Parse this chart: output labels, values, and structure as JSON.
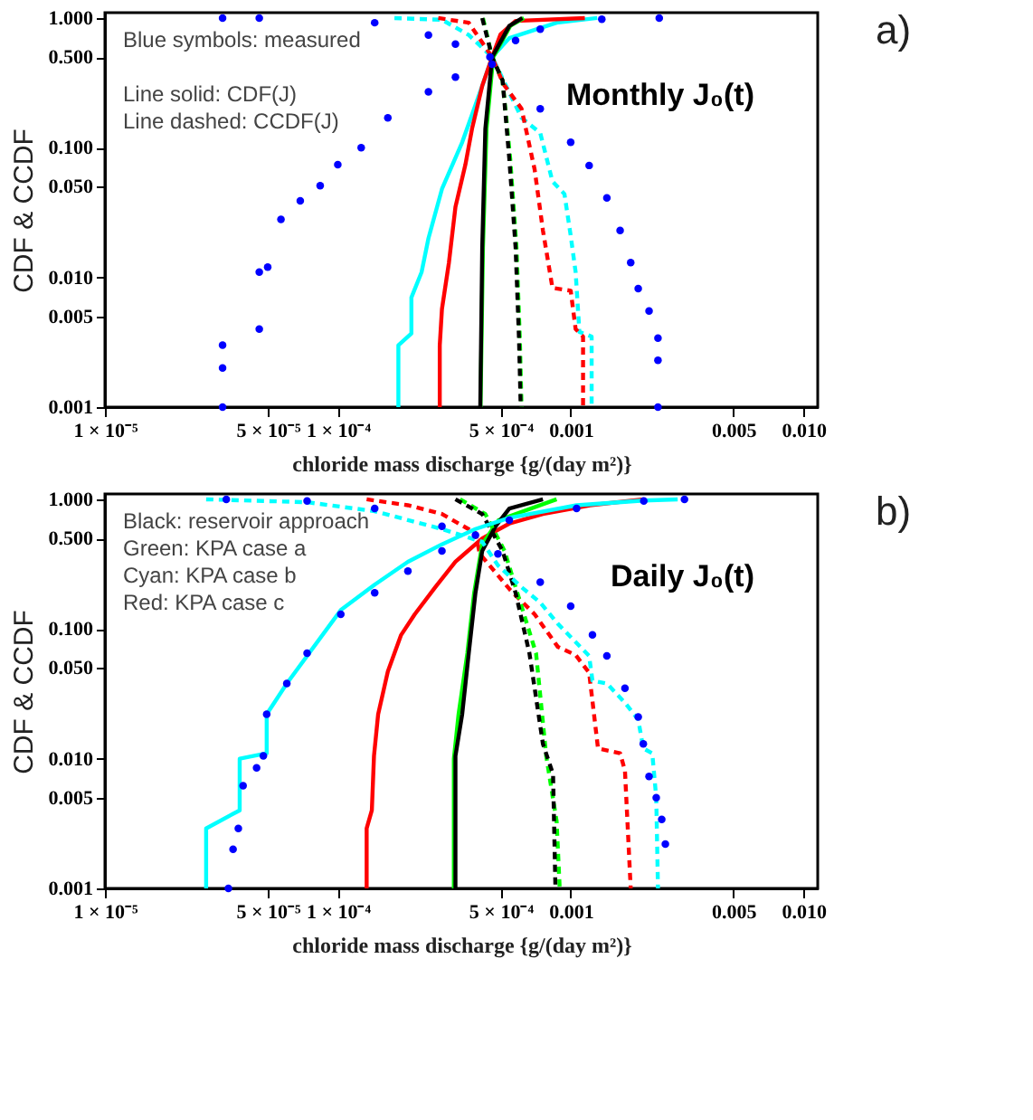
{
  "chart_data": [
    {
      "type": "line",
      "title": "Monthly J₀(t)",
      "xlabel": "chloride mass discharge {g/(day m²)}",
      "ylabel": "CDF & CCDF",
      "annotations": [
        "Blue symbols: measured",
        "Line solid: CDF(J)",
        "Line dashed: CCDF(J)",
        "a)"
      ],
      "log": "xy",
      "grid": false,
      "xlim": [
        1e-05,
        0.0115
      ],
      "xticks": [
        {
          "value": 1e-05,
          "label": "1 × 10⁻⁵"
        },
        {
          "value": 5e-05,
          "label": "5 × 10⁻⁵"
        },
        {
          "value": 0.0001,
          "label": "1 × 10⁻⁴"
        },
        {
          "value": 0.0005,
          "label": "5 × 10⁻⁴"
        },
        {
          "value": 0.001,
          "label": "0.001"
        },
        {
          "value": 0.005,
          "label": "0.005"
        },
        {
          "value": 0.01,
          "label": "0.010"
        }
      ],
      "ylim": [
        0.001,
        1.1
      ],
      "yticks": [
        {
          "value": 0.001,
          "label": "0.001"
        },
        {
          "value": 0.005,
          "label": "0.005"
        },
        {
          "value": 0.01,
          "label": "0.010"
        },
        {
          "value": 0.05,
          "label": "0.050"
        },
        {
          "value": 0.1,
          "label": "0.100"
        },
        {
          "value": 0.5,
          "label": "0.500"
        },
        {
          "value": 1,
          "label": "1.000"
        }
      ],
      "series": [
        {
          "type": "line",
          "line_style": "solid",
          "color": "#00ffff",
          "x": [
            0.000182,
            0.000182,
            0.000207,
            0.000207,
            0.000229,
            0.000245,
            0.00028,
            0.000342,
            0.000417,
            0.00046,
            0.000545,
            0.00087,
            0.0013
          ],
          "values": [
            0.001,
            0.003,
            0.0037,
            0.007,
            0.011,
            0.02,
            0.048,
            0.11,
            0.3,
            0.5,
            0.7,
            0.92,
            1.0
          ]
        },
        {
          "type": "line",
          "line_style": "dashed",
          "color": "#00ffff",
          "x": [
            0.000175,
            0.00028,
            0.000365,
            0.00046,
            0.000615,
            0.00074,
            0.000835,
            0.00094,
            0.001,
            0.00105,
            0.00109,
            0.00123,
            0.00123
          ],
          "values": [
            1.0,
            0.97,
            0.74,
            0.5,
            0.17,
            0.13,
            0.055,
            0.044,
            0.021,
            0.011,
            0.0038,
            0.0035,
            0.001
          ]
        },
        {
          "type": "line",
          "line_style": "solid",
          "color": "#ff0000",
          "x": [
            0.000274,
            0.000274,
            0.00028,
            0.0003,
            0.00032,
            0.000353,
            0.000377,
            0.000417,
            0.00046,
            0.0005,
            0.00058,
            0.00115
          ],
          "values": [
            0.001,
            0.003,
            0.0057,
            0.013,
            0.035,
            0.074,
            0.14,
            0.3,
            0.5,
            0.75,
            0.95,
            1.0
          ]
        },
        {
          "type": "line",
          "line_style": "dashed",
          "color": "#ff0000",
          "x": [
            0.00027,
            0.000365,
            0.00046,
            0.000514,
            0.000615,
            0.0007,
            0.00076,
            0.000835,
            0.001,
            0.00105,
            0.00113,
            0.00113
          ],
          "values": [
            1.0,
            0.92,
            0.5,
            0.31,
            0.2,
            0.068,
            0.023,
            0.0083,
            0.0079,
            0.004,
            0.0035,
            0.001
          ]
        },
        {
          "type": "line",
          "line_style": "solid",
          "color": "#00ff00",
          "x": [
            0.00041,
            0.00042,
            0.000435,
            0.000465,
            0.00055,
            0.00063
          ],
          "values": [
            0.001,
            0.017,
            0.14,
            0.5,
            0.87,
            1.0
          ]
        },
        {
          "type": "line",
          "line_style": "solid",
          "color": "#000000",
          "x": [
            0.000409,
            0.000417,
            0.00043,
            0.00046,
            0.000545,
            0.00062
          ],
          "values": [
            0.001,
            0.017,
            0.14,
            0.5,
            0.87,
            1.0
          ]
        },
        {
          "type": "line",
          "line_style": "dashed",
          "color": "#00ff00",
          "x": [
            0.00042,
            0.00046,
            0.00051,
            0.00055,
            0.000585,
            0.000605,
            0.000615
          ],
          "values": [
            1.0,
            0.5,
            0.33,
            0.082,
            0.017,
            0.0033,
            0.001
          ]
        },
        {
          "type": "line",
          "line_style": "dashed",
          "color": "#000000",
          "x": [
            0.000417,
            0.00046,
            0.00051,
            0.000545,
            0.00058,
            0.0006,
            0.00061
          ],
          "values": [
            1.0,
            0.5,
            0.33,
            0.082,
            0.017,
            0.0033,
            0.001
          ]
        },
        {
          "type": "scatter",
          "marker": "circle",
          "color": "#0000ff",
          "x": [
            3.2e-05,
            3.2e-05,
            3.2e-05,
            4.6e-05,
            4.6e-05,
            5e-05,
            5.7e-05,
            6.9e-05,
            8.4e-05,
            0.0001,
            0.000126,
            0.000164,
            0.000245,
            0.00032,
            0.00045,
            0.00058,
            0.00074,
            0.00136,
            0.0024
          ],
          "values": [
            0.001,
            0.002,
            0.003,
            0.004,
            0.011,
            0.012,
            0.028,
            0.039,
            0.051,
            0.074,
            0.1,
            0.17,
            0.27,
            0.35,
            0.5,
            0.67,
            0.82,
            0.98,
            1.0
          ]
        },
        {
          "type": "scatter",
          "marker": "circle",
          "color": "#0000ff",
          "x": [
            3.2e-05,
            4.6e-05,
            0.000144,
            0.000245,
            0.00032,
            0.00046,
            0.00074,
            0.001,
            0.0012,
            0.00143,
            0.00163,
            0.00181,
            0.00195,
            0.00217,
            0.00237,
            0.00237,
            0.00237
          ],
          "values": [
            1.0,
            1.0,
            0.92,
            0.74,
            0.63,
            0.44,
            0.2,
            0.11,
            0.073,
            0.041,
            0.023,
            0.013,
            0.0082,
            0.0055,
            0.0034,
            0.0023,
            0.001
          ]
        }
      ]
    },
    {
      "type": "line",
      "title": "Daily J₀(t)",
      "xlabel": "chloride mass discharge {g/(day m²)}",
      "ylabel": "CDF & CCDF",
      "annotations": [
        "Black: reservoir approach",
        "Green: KPA case a",
        "Cyan: KPA case b",
        "Red: KPA case c",
        "b)"
      ],
      "log": "xy",
      "grid": false,
      "xlim": [
        1e-05,
        0.0115
      ],
      "xticks": [
        {
          "value": 1e-05,
          "label": "1 × 10⁻⁵"
        },
        {
          "value": 5e-05,
          "label": "5 × 10⁻⁵"
        },
        {
          "value": 0.0001,
          "label": "1 × 10⁻⁴"
        },
        {
          "value": 0.0005,
          "label": "5 × 10⁻⁴"
        },
        {
          "value": 0.001,
          "label": "0.001"
        },
        {
          "value": 0.005,
          "label": "0.005"
        },
        {
          "value": 0.01,
          "label": "0.010"
        }
      ],
      "ylim": [
        0.001,
        1.1
      ],
      "yticks": [
        {
          "value": 0.001,
          "label": "0.001"
        },
        {
          "value": 0.005,
          "label": "0.005"
        },
        {
          "value": 0.01,
          "label": "0.010"
        },
        {
          "value": 0.05,
          "label": "0.050"
        },
        {
          "value": 0.1,
          "label": "0.100"
        },
        {
          "value": 0.5,
          "label": "0.500"
        },
        {
          "value": 1,
          "label": "1.000"
        }
      ],
      "series": [
        {
          "type": "line",
          "line_style": "solid",
          "color": "#ff0000",
          "x": [
            0.000133,
            0.000133,
            0.00014,
            0.000143,
            0.000149,
            0.000164,
            0.000187,
            0.000214,
            0.000262,
            0.00032,
            0.000417,
            0.000545,
            0.00076,
            0.00121,
            0.00206
          ],
          "values": [
            0.001,
            0.0029,
            0.004,
            0.0105,
            0.022,
            0.047,
            0.09,
            0.13,
            0.21,
            0.33,
            0.5,
            0.65,
            0.77,
            0.9,
            1.0
          ]
        },
        {
          "type": "line",
          "line_style": "dashed",
          "color": "#ff0000",
          "x": [
            0.000133,
            0.0002,
            0.00028,
            0.00039,
            0.000407,
            0.00055,
            0.0007,
            0.00088,
            0.00105,
            0.0012,
            0.00131,
            0.00163,
            0.00171,
            0.00181
          ],
          "values": [
            1.0,
            0.9,
            0.77,
            0.55,
            0.38,
            0.2,
            0.13,
            0.073,
            0.063,
            0.046,
            0.012,
            0.011,
            0.0081,
            0.001
          ]
        },
        {
          "type": "line",
          "line_style": "solid",
          "color": "#00ff00",
          "x": [
            0.000315,
            0.000315,
            0.00033,
            0.00036,
            0.000385,
            0.000417,
            0.00049,
            0.00087
          ],
          "values": [
            0.001,
            0.01,
            0.022,
            0.065,
            0.19,
            0.45,
            0.69,
            1.0
          ]
        },
        {
          "type": "line",
          "line_style": "solid",
          "color": "#000000",
          "x": [
            0.00032,
            0.00032,
            0.000342,
            0.000365,
            0.00039,
            0.000417,
            0.000476,
            0.000545,
            0.00076
          ],
          "values": [
            0.001,
            0.0105,
            0.022,
            0.065,
            0.19,
            0.4,
            0.62,
            0.85,
            1.0
          ]
        },
        {
          "type": "line",
          "line_style": "dashed",
          "color": "#00ff00",
          "x": [
            0.000335,
            0.00043,
            0.00052,
            0.00059,
            0.00071,
            0.000785,
            0.00087,
            0.000897
          ],
          "values": [
            1.0,
            0.77,
            0.4,
            0.19,
            0.065,
            0.0105,
            0.0033,
            0.001
          ]
        },
        {
          "type": "line",
          "line_style": "dashed",
          "color": "#000000",
          "x": [
            0.00032,
            0.000417,
            0.00051,
            0.00058,
            0.000665,
            0.00076,
            0.00084,
            0.00086
          ],
          "values": [
            1.0,
            0.77,
            0.4,
            0.19,
            0.065,
            0.013,
            0.0076,
            0.001
          ]
        },
        {
          "type": "scatter",
          "marker": "circle",
          "color": "#0000ff",
          "x": [
            3.39e-05,
            3.55e-05,
            3.74e-05,
            3.92e-05,
            4.48e-05,
            4.79e-05,
            4.95e-05,
            6.04e-05,
            7.38e-05,
            0.000103,
            0.000144,
            0.0002,
            0.00028,
            0.00039,
            0.000545,
            0.00106,
            0.00206,
            0.00308
          ],
          "values": [
            0.001,
            0.002,
            0.0029,
            0.0062,
            0.0085,
            0.0105,
            0.022,
            0.038,
            0.065,
            0.13,
            0.19,
            0.28,
            0.4,
            0.53,
            0.69,
            0.85,
            0.97,
            1.0
          ]
        },
        {
          "type": "scatter",
          "marker": "circle",
          "color": "#0000ff",
          "x": [
            3.32e-05,
            7.38e-05,
            0.000144,
            0.00028,
            0.000487,
            0.00074,
            0.001,
            0.00124,
            0.00143,
            0.00171,
            0.00195,
            0.00205,
            0.00217,
            0.00233,
            0.00246,
            0.00255
          ],
          "values": [
            1.0,
            0.97,
            0.85,
            0.62,
            0.38,
            0.23,
            0.15,
            0.09,
            0.062,
            0.035,
            0.021,
            0.013,
            0.0073,
            0.005,
            0.0034,
            0.0022
          ]
        },
        {
          "type": "line",
          "line_style": "solid",
          "color": "#00ffff",
          "x": [
            2.72e-05,
            2.72e-05,
            3.79e-05,
            3.79e-05,
            4.95e-05,
            4.95e-05,
            6.04e-05,
            0.000103,
            0.000144,
            0.0002,
            0.00028,
            0.00039,
            0.000545,
            0.00106,
            0.00206,
            0.00288
          ],
          "values": [
            0.001,
            0.0029,
            0.004,
            0.01,
            0.011,
            0.022,
            0.038,
            0.14,
            0.22,
            0.33,
            0.45,
            0.59,
            0.72,
            0.9,
            0.98,
            1.0
          ]
        },
        {
          "type": "line",
          "line_style": "dashed",
          "color": "#00ffff",
          "x": [
            2.72e-05,
            7.38e-05,
            0.000144,
            0.00028,
            0.000417,
            0.000487,
            0.000615,
            0.00074,
            0.00088,
            0.0012,
            0.00124,
            0.00143,
            0.00171,
            0.00195,
            0.00205,
            0.00224,
            0.00233,
            0.00237
          ],
          "values": [
            1.0,
            0.95,
            0.81,
            0.59,
            0.47,
            0.31,
            0.21,
            0.16,
            0.11,
            0.062,
            0.04,
            0.038,
            0.027,
            0.02,
            0.012,
            0.011,
            0.005,
            0.001
          ]
        }
      ]
    }
  ]
}
